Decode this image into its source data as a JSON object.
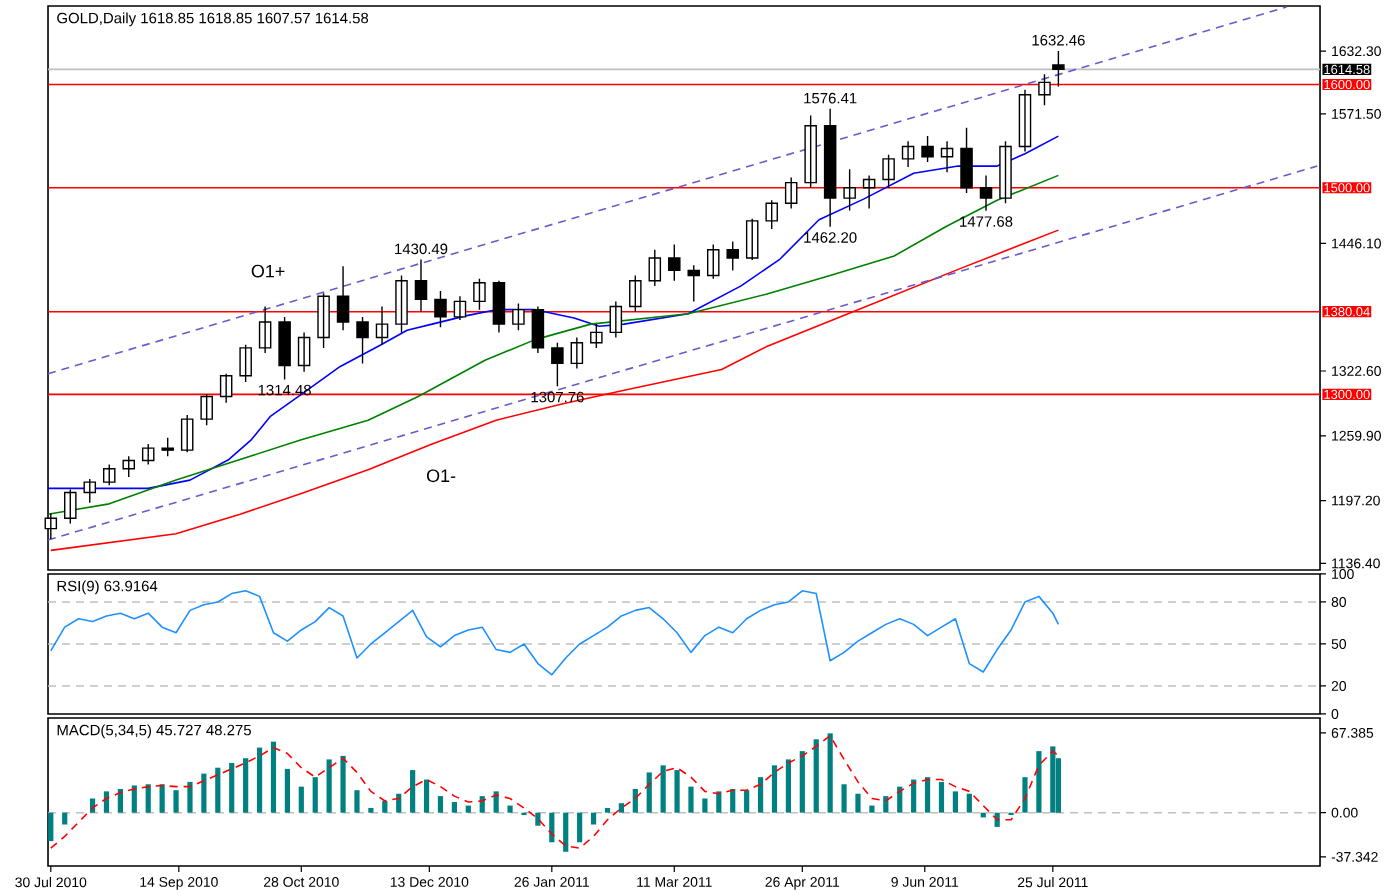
{
  "chart_data": [
    {
      "type": "candlestick",
      "title": "GOLD,Daily  1618.85 1618.85 1607.57 1614.58",
      "color": "#000000",
      "x": [
        "2010-07-30",
        "2010-08-06",
        "2010-08-13",
        "2010-08-20",
        "2010-08-27",
        "2010-09-03",
        "2010-09-10",
        "2010-09-17",
        "2010-09-24",
        "2010-10-01",
        "2010-10-08",
        "2010-10-15",
        "2010-10-22",
        "2010-10-29",
        "2010-11-05",
        "2010-11-12",
        "2010-11-19",
        "2010-11-26",
        "2010-12-03",
        "2010-12-10",
        "2010-12-17",
        "2010-12-24",
        "2010-12-31",
        "2011-01-07",
        "2011-01-14",
        "2011-01-21",
        "2011-01-28",
        "2011-02-04",
        "2011-02-11",
        "2011-02-18",
        "2011-02-25",
        "2011-03-04",
        "2011-03-11",
        "2011-03-18",
        "2011-03-25",
        "2011-04-01",
        "2011-04-08",
        "2011-04-15",
        "2011-04-22",
        "2011-04-29",
        "2011-05-06",
        "2011-05-13",
        "2011-05-20",
        "2011-05-27",
        "2011-06-03",
        "2011-06-10",
        "2011-06-17",
        "2011-06-24",
        "2011-07-01",
        "2011-07-08",
        "2011-07-15",
        "2011-07-22",
        "2011-07-27"
      ],
      "ohlc": [
        [
          1170,
          1185,
          1160,
          1180
        ],
        [
          1180,
          1208,
          1175,
          1205
        ],
        [
          1205,
          1218,
          1195,
          1215
        ],
        [
          1215,
          1232,
          1212,
          1228
        ],
        [
          1228,
          1240,
          1220,
          1236
        ],
        [
          1236,
          1252,
          1232,
          1248
        ],
        [
          1248,
          1258,
          1240,
          1246
        ],
        [
          1246,
          1280,
          1244,
          1276
        ],
        [
          1276,
          1300,
          1270,
          1298
        ],
        [
          1298,
          1320,
          1292,
          1318
        ],
        [
          1318,
          1348,
          1312,
          1345
        ],
        [
          1345,
          1385,
          1340,
          1370
        ],
        [
          1370,
          1375,
          1314.48,
          1328
        ],
        [
          1328,
          1360,
          1322,
          1355
        ],
        [
          1355,
          1398,
          1345,
          1395
        ],
        [
          1395,
          1424,
          1362,
          1370
        ],
        [
          1370,
          1375,
          1330,
          1355
        ],
        [
          1355,
          1385,
          1348,
          1368
        ],
        [
          1368,
          1415,
          1360,
          1410
        ],
        [
          1410,
          1430.49,
          1380,
          1392
        ],
        [
          1392,
          1400,
          1365,
          1375
        ],
        [
          1375,
          1395,
          1372,
          1390
        ],
        [
          1390,
          1412,
          1382,
          1408
        ],
        [
          1408,
          1410,
          1360,
          1368
        ],
        [
          1368,
          1388,
          1362,
          1382
        ],
        [
          1382,
          1385,
          1340,
          1345
        ],
        [
          1345,
          1350,
          1307.76,
          1330
        ],
        [
          1330,
          1355,
          1325,
          1350
        ],
        [
          1350,
          1368,
          1345,
          1360
        ],
        [
          1360,
          1390,
          1355,
          1385
        ],
        [
          1385,
          1415,
          1380,
          1410
        ],
        [
          1410,
          1440,
          1405,
          1432
        ],
        [
          1432,
          1445,
          1410,
          1420
        ],
        [
          1420,
          1425,
          1390,
          1415
        ],
        [
          1415,
          1445,
          1412,
          1440
        ],
        [
          1440,
          1448,
          1420,
          1432
        ],
        [
          1432,
          1470,
          1430,
          1468
        ],
        [
          1468,
          1488,
          1460,
          1485
        ],
        [
          1485,
          1510,
          1480,
          1505
        ],
        [
          1505,
          1570,
          1500,
          1560
        ],
        [
          1560,
          1576.41,
          1462.2,
          1490
        ],
        [
          1490,
          1518,
          1478,
          1500
        ],
        [
          1500,
          1512,
          1480,
          1508
        ],
        [
          1508,
          1532,
          1500,
          1528
        ],
        [
          1528,
          1545,
          1520,
          1540
        ],
        [
          1540,
          1550,
          1525,
          1530
        ],
        [
          1530,
          1545,
          1515,
          1538
        ],
        [
          1538,
          1558,
          1495,
          1500
        ],
        [
          1500,
          1512,
          1477.68,
          1490
        ],
        [
          1490,
          1545,
          1485,
          1540
        ],
        [
          1540,
          1595,
          1535,
          1590
        ],
        [
          1590,
          1610,
          1580,
          1602
        ],
        [
          1618.85,
          1632.46,
          1598,
          1614.58
        ]
      ],
      "series": [
        {
          "type": "line",
          "color": "#0000ff",
          "x": [
            "2010-07-29",
            "2010-09-03",
            "2010-09-18",
            "2010-10-02",
            "2010-10-10",
            "2010-10-17",
            "2010-10-28",
            "2010-11-11",
            "2010-11-25",
            "2010-12-05",
            "2010-12-14",
            "2010-12-26",
            "2011-01-06",
            "2011-01-20",
            "2011-02-03",
            "2011-02-12",
            "2011-02-21",
            "2011-03-16",
            "2011-04-04",
            "2011-04-18",
            "2011-05-02",
            "2011-05-18",
            "2011-06-05",
            "2011-06-21",
            "2011-07-05",
            "2011-07-15",
            "2011-07-27"
          ],
          "values": [
            1209,
            1209,
            1217,
            1237,
            1256,
            1279,
            1300,
            1327,
            1347,
            1362,
            1368,
            1376,
            1382,
            1382,
            1374,
            1366,
            1368,
            1378,
            1405,
            1431,
            1469,
            1489,
            1514,
            1521,
            1521,
            1533,
            1550
          ]
        },
        {
          "type": "line",
          "color": "#008000",
          "x": [
            "2010-07-29",
            "2010-08-20",
            "2010-09-13",
            "2010-10-06",
            "2010-10-28",
            "2010-11-21",
            "2010-12-09",
            "2011-01-02",
            "2011-01-20",
            "2011-02-09",
            "2011-03-16",
            "2011-04-13",
            "2011-05-06",
            "2011-05-29",
            "2011-06-17",
            "2011-07-05",
            "2011-07-27"
          ],
          "values": [
            1184,
            1194,
            1217,
            1237,
            1256,
            1275,
            1298,
            1333,
            1353,
            1368,
            1378,
            1397,
            1415,
            1434,
            1463,
            1488,
            1512
          ]
        },
        {
          "type": "line",
          "color": "#ff0000",
          "x": [
            "2010-07-30",
            "2010-09-13",
            "2010-10-06",
            "2010-10-28",
            "2010-11-21",
            "2010-12-14",
            "2011-01-06",
            "2011-01-30",
            "2011-02-21",
            "2011-03-28",
            "2011-04-13",
            "2011-05-18",
            "2011-06-21",
            "2011-07-27"
          ],
          "values": [
            1149,
            1165,
            1184,
            1204,
            1227,
            1252,
            1275,
            1291,
            1304,
            1324,
            1346,
            1384,
            1421,
            1459
          ]
        },
        {
          "type": "line",
          "color": "#6a5acd",
          "line_style": "dashed",
          "x": [
            "2010-07-29",
            "2011-10-17"
          ],
          "values": [
            1320,
            1675
          ]
        },
        {
          "type": "line",
          "color": "#6a5acd",
          "line_style": "dashed",
          "x": [
            "2010-07-29",
            "2011-10-28"
          ],
          "values": [
            1159,
            1521
          ]
        }
      ],
      "ref_lines": [
        {
          "axis": "y",
          "value": 1600,
          "label": "1600.00",
          "color": "#ff0000"
        },
        {
          "axis": "y",
          "value": 1500,
          "label": "1500.00",
          "color": "#ff0000"
        },
        {
          "axis": "y",
          "value": 1380.04,
          "label": "1380.04",
          "color": "#ff0000"
        },
        {
          "axis": "y",
          "value": 1300,
          "label": "1300.00",
          "color": "#ff0000"
        },
        {
          "axis": "y",
          "value": 1614.58,
          "label": "1614.58",
          "color": "#c0c0c0"
        }
      ],
      "annotations": [
        {
          "text": "1632.46",
          "x": "2011-07-27",
          "y": 1632.46
        },
        {
          "text": "1576.41",
          "x": "2011-05-06",
          "y": 1576.41
        },
        {
          "text": "1462.20",
          "x": "2011-05-06",
          "y": 1462.2
        },
        {
          "text": "1477.68",
          "x": "2011-07-01",
          "y": 1477.68
        },
        {
          "text": "1430.49",
          "x": "2010-12-10",
          "y": 1430.49
        },
        {
          "text": "1314.48",
          "x": "2010-10-22",
          "y": 1314.48
        },
        {
          "text": "1307.76",
          "x": "2011-01-28",
          "y": 1307.76
        },
        "O1+",
        "O1-"
      ],
      "xlim": [
        "2010-07-29",
        "2011-10-29"
      ],
      "ylim": [
        1130,
        1676
      ],
      "yticks": [
        {
          "value": 1632.3,
          "label": "1632.30"
        },
        {
          "value": 1571.5,
          "label": "1571.50"
        },
        {
          "value": 1446.1,
          "label": "1446.10"
        },
        {
          "value": 1322.6,
          "label": "1322.60"
        },
        {
          "value": 1259.9,
          "label": "1259.90"
        },
        {
          "value": 1197.2,
          "label": "1197.20"
        },
        {
          "value": 1136.4,
          "label": "1136.40"
        }
      ],
      "tick_labels": "y"
    },
    {
      "type": "line",
      "title": "RSI(9) 63.9164",
      "color": "#1e90ff",
      "x": [
        "2010-07-30",
        "2010-08-04",
        "2010-08-09",
        "2010-08-14",
        "2010-08-19",
        "2010-08-24",
        "2010-08-29",
        "2010-09-03",
        "2010-09-08",
        "2010-09-13",
        "2010-09-18",
        "2010-09-23",
        "2010-09-28",
        "2010-10-03",
        "2010-10-08",
        "2010-10-13",
        "2010-10-18",
        "2010-10-23",
        "2010-10-28",
        "2010-11-02",
        "2010-11-07",
        "2010-11-12",
        "2010-11-17",
        "2010-11-22",
        "2010-11-27",
        "2010-12-02",
        "2010-12-07",
        "2010-12-12",
        "2010-12-17",
        "2010-12-22",
        "2010-12-27",
        "2011-01-01",
        "2011-01-06",
        "2011-01-11",
        "2011-01-16",
        "2011-01-21",
        "2011-01-26",
        "2011-01-31",
        "2011-02-05",
        "2011-02-10",
        "2011-02-15",
        "2011-02-20",
        "2011-02-25",
        "2011-03-02",
        "2011-03-07",
        "2011-03-12",
        "2011-03-17",
        "2011-03-22",
        "2011-03-27",
        "2011-04-01",
        "2011-04-06",
        "2011-04-11",
        "2011-04-16",
        "2011-04-21",
        "2011-04-26",
        "2011-05-01",
        "2011-05-06",
        "2011-05-11",
        "2011-05-16",
        "2011-05-21",
        "2011-05-26",
        "2011-05-31",
        "2011-06-05",
        "2011-06-10",
        "2011-06-15",
        "2011-06-20",
        "2011-06-25",
        "2011-06-30",
        "2011-07-05",
        "2011-07-10",
        "2011-07-15",
        "2011-07-20",
        "2011-07-25",
        "2011-07-27"
      ],
      "values": [
        45,
        62,
        68,
        66,
        70,
        72,
        68,
        72,
        62,
        58,
        74,
        78,
        80,
        86,
        88,
        84,
        58,
        52,
        60,
        66,
        76,
        70,
        40,
        50,
        58,
        66,
        74,
        55,
        48,
        56,
        60,
        62,
        46,
        44,
        50,
        36,
        28,
        40,
        50,
        56,
        62,
        70,
        74,
        76,
        68,
        58,
        44,
        56,
        62,
        58,
        68,
        74,
        78,
        80,
        88,
        86,
        38,
        44,
        52,
        58,
        64,
        68,
        64,
        56,
        62,
        68,
        36,
        30,
        46,
        60,
        80,
        84,
        72,
        64
      ],
      "ref_lines": [
        {
          "axis": "y",
          "value": 80,
          "color": "#c0c0c0",
          "line_style": "dashed"
        },
        {
          "axis": "y",
          "value": 50,
          "color": "#c0c0c0",
          "line_style": "dashed"
        },
        {
          "axis": "y",
          "value": 20,
          "color": "#c0c0c0",
          "line_style": "dashed"
        }
      ],
      "xlim": [
        "2010-07-29",
        "2011-10-29"
      ],
      "ylim": [
        0,
        100
      ],
      "yticks": [
        100,
        80,
        50,
        20,
        0
      ],
      "tick_labels": "y"
    },
    {
      "type": "bar",
      "title": "MACD(5,34,5) 45.727 48.275",
      "x": [
        "2010-07-30",
        "2010-08-04",
        "2010-08-09",
        "2010-08-14",
        "2010-08-19",
        "2010-08-24",
        "2010-08-29",
        "2010-09-03",
        "2010-09-08",
        "2010-09-13",
        "2010-09-18",
        "2010-09-23",
        "2010-09-28",
        "2010-10-03",
        "2010-10-08",
        "2010-10-13",
        "2010-10-18",
        "2010-10-23",
        "2010-10-28",
        "2010-11-02",
        "2010-11-07",
        "2010-11-12",
        "2010-11-17",
        "2010-11-22",
        "2010-11-27",
        "2010-12-02",
        "2010-12-07",
        "2010-12-12",
        "2010-12-17",
        "2010-12-22",
        "2010-12-27",
        "2011-01-01",
        "2011-01-06",
        "2011-01-11",
        "2011-01-16",
        "2011-01-21",
        "2011-01-26",
        "2011-01-31",
        "2011-02-05",
        "2011-02-10",
        "2011-02-15",
        "2011-02-20",
        "2011-02-25",
        "2011-03-02",
        "2011-03-07",
        "2011-03-12",
        "2011-03-17",
        "2011-03-22",
        "2011-03-27",
        "2011-04-01",
        "2011-04-06",
        "2011-04-11",
        "2011-04-16",
        "2011-04-21",
        "2011-04-26",
        "2011-05-01",
        "2011-05-06",
        "2011-05-11",
        "2011-05-16",
        "2011-05-21",
        "2011-05-26",
        "2011-05-31",
        "2011-06-05",
        "2011-06-10",
        "2011-06-15",
        "2011-06-20",
        "2011-06-25",
        "2011-06-30",
        "2011-07-05",
        "2011-07-10",
        "2011-07-15",
        "2011-07-20",
        "2011-07-25",
        "2011-07-27"
      ],
      "series": [
        {
          "type": "bar",
          "color": "#008080",
          "values": [
            -24,
            -10,
            0,
            12,
            18,
            20,
            23,
            24,
            24,
            19,
            26,
            33,
            38,
            42,
            46,
            55,
            60,
            37,
            22,
            30,
            45,
            48,
            19,
            4,
            10,
            16,
            36,
            28,
            14,
            9,
            6,
            14,
            18,
            6,
            -2,
            -11,
            -25,
            -33,
            -25,
            -10,
            4,
            8,
            20,
            34,
            40,
            36,
            22,
            12,
            18,
            20,
            19,
            30,
            40,
            45,
            52,
            62,
            67,
            24,
            16,
            6,
            14,
            22,
            28,
            30,
            26,
            18,
            16,
            -4,
            -12,
            -2,
            30,
            52,
            56,
            46
          ]
        },
        {
          "type": "line",
          "color": "#ff0000",
          "line_style": "dashed",
          "values": [
            -30,
            -20,
            -8,
            4,
            12,
            17,
            20,
            22,
            23,
            22,
            22,
            27,
            32,
            37,
            42,
            48,
            55,
            50,
            38,
            30,
            38,
            46,
            34,
            18,
            10,
            12,
            22,
            28,
            22,
            14,
            9,
            10,
            15,
            12,
            4,
            -5,
            -18,
            -28,
            -30,
            -20,
            -6,
            4,
            12,
            24,
            35,
            38,
            30,
            18,
            16,
            19,
            19,
            24,
            34,
            42,
            48,
            56,
            65,
            45,
            26,
            12,
            10,
            18,
            25,
            28,
            28,
            22,
            18,
            6,
            -6,
            -6,
            12,
            40,
            52,
            48
          ]
        }
      ],
      "ref_lines": [
        {
          "axis": "y",
          "value": 0,
          "color": "#c0c0c0",
          "line_style": "dashed"
        }
      ],
      "xlim": [
        "2010-07-29",
        "2011-10-29"
      ],
      "ylim": [
        -45,
        80
      ],
      "yticks": [
        {
          "value": 67.385,
          "label": "67.385"
        },
        {
          "value": 0,
          "label": "0.00"
        },
        {
          "value": -37.342,
          "label": "-37.342"
        }
      ],
      "xticks": [
        {
          "value": "2010-07-30",
          "label": "30 Jul 2010"
        },
        {
          "value": "2010-09-14",
          "label": "14 Sep 2010"
        },
        {
          "value": "2010-10-28",
          "label": "28 Oct 2010"
        },
        {
          "value": "2010-12-13",
          "label": "13 Dec 2010"
        },
        {
          "value": "2011-01-26",
          "label": "26 Jan 2011"
        },
        {
          "value": "2011-03-11",
          "label": "11 Mar 2011"
        },
        {
          "value": "2011-04-26",
          "label": "26 Apr 2011"
        },
        {
          "value": "2011-06-09",
          "label": "9 Jun 2011"
        },
        {
          "value": "2011-07-25",
          "label": "25 Jul 2011"
        }
      ]
    }
  ]
}
